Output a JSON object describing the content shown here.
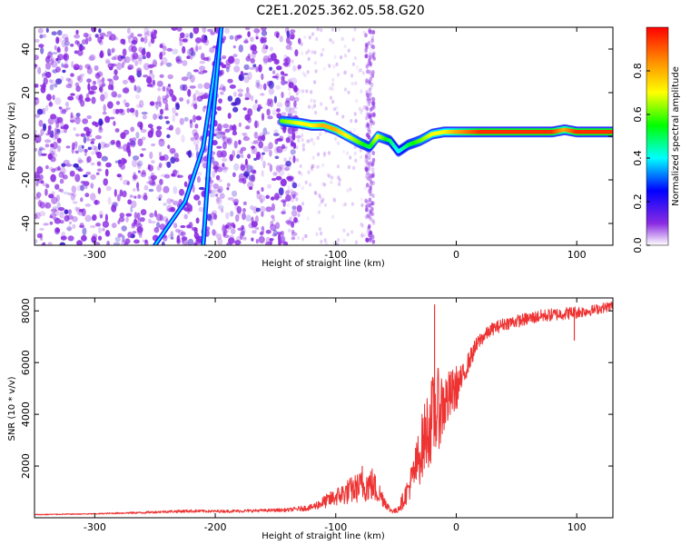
{
  "title": "C2E1.2025.362.05.58.G20",
  "colors": {
    "background": "#ffffff",
    "noise": "#8a2be2",
    "signal_line": "#ee3333",
    "frame": "#000000"
  },
  "chart_data": [
    {
      "type": "heatmap",
      "xlabel": "Height of straight line (km)",
      "ylabel": "Frequency (Hz)",
      "xlim": [
        -350,
        130
      ],
      "ylim": [
        -50,
        50
      ],
      "xticks": [
        -300,
        -200,
        -100,
        0,
        100
      ],
      "yticks": [
        -40,
        -20,
        0,
        20,
        40
      ],
      "colorbar": {
        "label": "Normalized spectral amplitude",
        "range": [
          0.0,
          1.0
        ],
        "ticks": [
          0.0,
          0.2,
          0.4,
          0.6,
          0.8
        ],
        "colormap": "rainbow (purple to red)"
      },
      "noise_region_x": [
        -350,
        -140
      ],
      "noise_stripe_x": [
        -75,
        -68
      ],
      "frequency_trace": {
        "x": [
          -145,
          -130,
          -120,
          -110,
          -100,
          -90,
          -80,
          -72,
          -65,
          -55,
          -48,
          -40,
          -30,
          -20,
          -10,
          0,
          20,
          40,
          60,
          80,
          90,
          100,
          130
        ],
        "y": [
          7,
          6,
          5,
          5,
          3,
          0,
          -3,
          -5,
          0,
          -2,
          -7,
          -4,
          -2,
          1,
          2,
          2,
          2,
          2,
          2,
          2,
          3,
          2,
          2
        ],
        "amplitude": [
          0.6,
          0.7,
          0.7,
          0.8,
          0.8,
          0.7,
          0.6,
          0.5,
          0.7,
          0.5,
          0.4,
          0.5,
          0.6,
          0.7,
          0.7,
          0.8,
          0.95,
          0.95,
          0.95,
          0.95,
          0.8,
          0.95,
          0.95
        ]
      },
      "streaks": [
        {
          "x": [
            -250,
            -225,
            -210,
            -195
          ],
          "y": [
            -50,
            -30,
            -5,
            50
          ]
        },
        {
          "x": [
            -210,
            -205,
            -200,
            -195
          ],
          "y": [
            -50,
            -10,
            20,
            50
          ]
        }
      ]
    },
    {
      "type": "line",
      "xlabel": "Height of straight line (km)",
      "ylabel": "SNR (10 * v/v)",
      "xlim": [
        -350,
        130
      ],
      "ylim": [
        0,
        8500
      ],
      "xticks": [
        -300,
        -200,
        -100,
        0,
        100
      ],
      "yticks": [
        2000,
        4000,
        6000,
        8000
      ],
      "series": [
        {
          "x": [
            -350,
            -320,
            -300,
            -280,
            -260,
            -240,
            -220,
            -200,
            -180,
            -160,
            -140,
            -120,
            -110,
            -100,
            -90,
            -80,
            -70,
            -60,
            -55,
            -50,
            -45,
            -40,
            -35,
            -30,
            -25,
            -20,
            -15,
            -10,
            -5,
            0,
            5,
            10,
            15,
            20,
            25,
            30,
            40,
            50,
            60,
            70,
            80,
            90,
            100,
            110,
            120,
            130
          ],
          "y": [
            120,
            140,
            150,
            180,
            200,
            240,
            260,
            250,
            260,
            280,
            300,
            400,
            600,
            800,
            1000,
            1200,
            1300,
            700,
            300,
            250,
            600,
            1100,
            1700,
            2500,
            3300,
            3800,
            4200,
            4400,
            4700,
            5000,
            5400,
            6000,
            6500,
            6900,
            7100,
            7300,
            7500,
            7600,
            7700,
            7800,
            7850,
            7900,
            7950,
            8000,
            8100,
            8200
          ],
          "jitter": [
            20,
            20,
            20,
            30,
            40,
            50,
            60,
            50,
            60,
            60,
            70,
            120,
            250,
            350,
            500,
            600,
            700,
            300,
            100,
            120,
            300,
            500,
            800,
            1200,
            1500,
            1700,
            1600,
            1300,
            1000,
            900,
            500,
            400,
            350,
            300,
            250,
            250,
            250,
            250,
            250,
            250,
            250,
            250,
            250,
            200,
            200,
            200
          ],
          "peaks": [
            {
              "x": -78,
              "y": 2000
            },
            {
              "x": -18,
              "y": 8250
            },
            {
              "x": 98,
              "y": 6850
            }
          ]
        }
      ]
    }
  ]
}
